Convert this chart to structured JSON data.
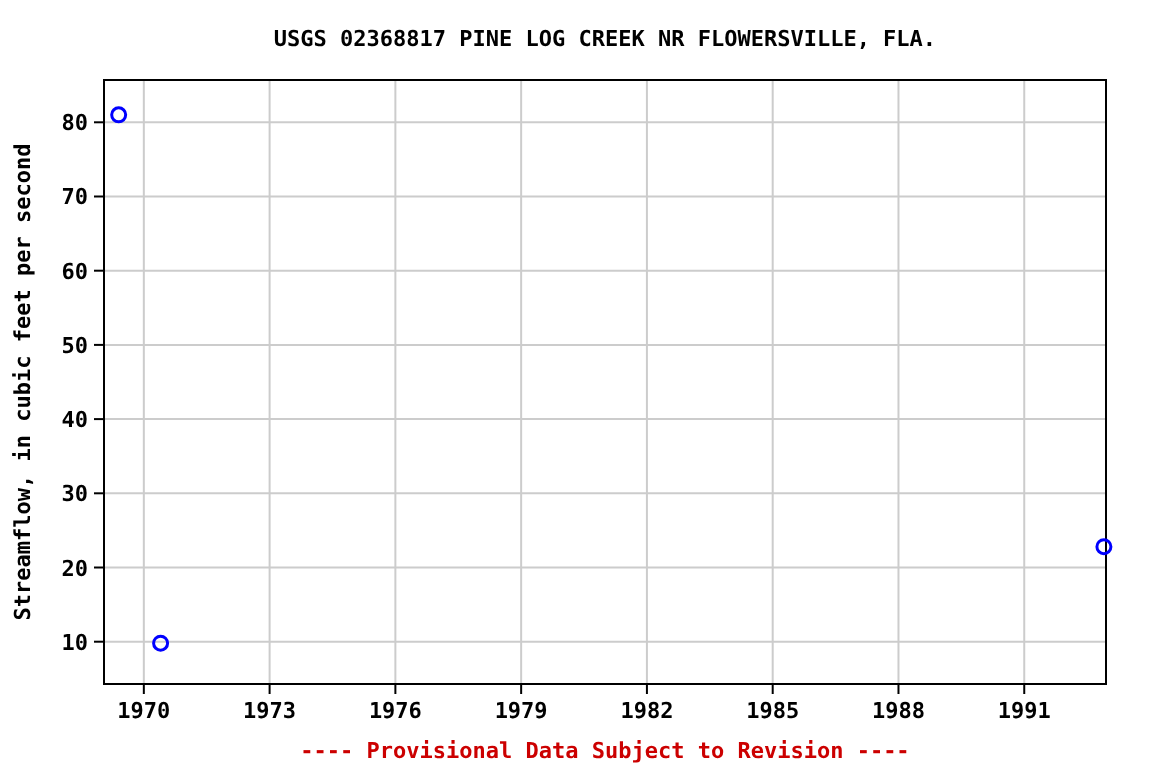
{
  "chart_data": {
    "type": "scatter",
    "title": "USGS 02368817 PINE LOG CREEK NR FLOWERSVILLE, FLA.",
    "ylabel": "Streamflow, in cubic feet per second",
    "x": [
      1969.4,
      1970.4,
      1992.9
    ],
    "series": [
      {
        "color": "#0000ff",
        "values": [
          81,
          9.8,
          22.8
        ]
      }
    ],
    "xlim": [
      1969.05,
      1992.95
    ],
    "xticks": [
      1970,
      1973,
      1976,
      1979,
      1982,
      1985,
      1988,
      1991
    ],
    "ylim": [
      4.3,
      85.7
    ],
    "yticks": [
      10,
      20,
      30,
      40,
      50,
      60,
      70,
      80
    ],
    "grid": true,
    "marker": "circle",
    "annotations": [
      "---- Provisional Data Subject to Revision ----"
    ]
  }
}
